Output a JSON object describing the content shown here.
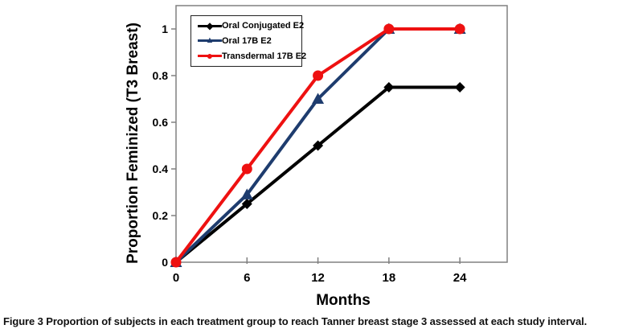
{
  "figure": {
    "caption_label": "Figure 3",
    "caption_text": "Proportion of subjects in each treatment group to reach Tanner breast stage 3 assessed at each study interval."
  },
  "chart_data": {
    "type": "line",
    "title": "",
    "xlabel": "Months",
    "ylabel": "Proportion Feminized (T3 Breast)",
    "x": [
      0,
      6,
      12,
      18,
      24
    ],
    "x_ticks": [
      0,
      6,
      12,
      18,
      24
    ],
    "y_ticks": [
      0,
      0.2,
      0.4,
      0.6,
      0.8,
      1
    ],
    "xlim": [
      0,
      28
    ],
    "ylim": [
      0,
      1.1
    ],
    "grid": false,
    "legend_position": "top-left-inside",
    "axis_color": "#808080",
    "series": [
      {
        "name": "Oral Conjugated E2",
        "color": "#000000",
        "marker": "diamond",
        "values": [
          0,
          0.25,
          0.5,
          0.75,
          0.75
        ]
      },
      {
        "name": "Oral 17B E2",
        "color": "#1E3C6E",
        "marker": "triangle",
        "values": [
          0,
          0.29,
          0.7,
          1,
          1
        ]
      },
      {
        "name": "Transdermal 17B E2",
        "color": "#EE1111",
        "marker": "circle",
        "values": [
          0,
          0.4,
          0.8,
          1,
          1
        ]
      }
    ],
    "legend_glyphs": {
      "diamond": "◆",
      "triangle": "▲",
      "circle": "●"
    }
  }
}
